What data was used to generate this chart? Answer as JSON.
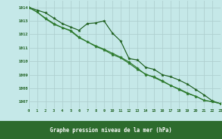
{
  "title": "Graphe pression niveau de la mer (hPa)",
  "background_color": "#c5e8e8",
  "grid_color": "#aecece",
  "line_colors": [
    "#1a5c1a",
    "#2d7a2d",
    "#2d7a2d"
  ],
  "x_ticks": [
    0,
    1,
    2,
    3,
    4,
    5,
    6,
    7,
    8,
    9,
    10,
    11,
    12,
    13,
    14,
    15,
    16,
    17,
    18,
    19,
    20,
    21,
    22,
    23
  ],
  "xlim": [
    0,
    23
  ],
  "ylim": [
    1006.5,
    1014.5
  ],
  "yticks": [
    1007,
    1008,
    1009,
    1010,
    1011,
    1012,
    1013,
    1014
  ],
  "label_bar_color": "#2d6b2d",
  "tick_color": "#1a5c1a",
  "series": [
    [
      1014.0,
      1013.8,
      1013.6,
      1013.2,
      1012.8,
      1012.55,
      1012.3,
      1012.8,
      1012.85,
      1013.0,
      1012.1,
      1011.5,
      1010.2,
      1010.1,
      1009.55,
      1009.4,
      1009.0,
      1008.85,
      1008.6,
      1008.3,
      1007.9,
      1007.5,
      1007.05,
      1006.85
    ],
    [
      1014.0,
      1013.65,
      1013.2,
      1012.8,
      1012.5,
      1012.3,
      1011.8,
      1011.45,
      1011.15,
      1010.9,
      1010.6,
      1010.3,
      1009.95,
      1009.5,
      1009.0,
      1008.85,
      1008.55,
      1008.2,
      1007.95,
      1007.65,
      1007.4,
      1007.1,
      1007.0,
      1006.85
    ],
    [
      1014.0,
      1013.65,
      1013.15,
      1012.75,
      1012.5,
      1012.25,
      1011.75,
      1011.45,
      1011.1,
      1010.85,
      1010.5,
      1010.25,
      1009.85,
      1009.4,
      1009.05,
      1008.8,
      1008.5,
      1008.2,
      1007.9,
      1007.6,
      1007.4,
      1007.1,
      1007.0,
      1006.85
    ]
  ]
}
